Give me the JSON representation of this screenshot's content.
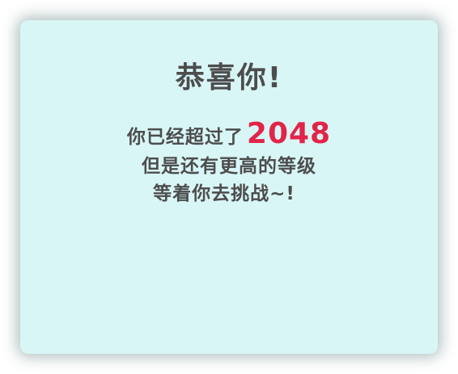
{
  "dialog": {
    "title": "恭喜你!",
    "line1_prefix": "你已经超过了",
    "score": "2048",
    "line2": "但是还有更高的等级",
    "line3": "等着你去挑战~!"
  },
  "colors": {
    "background": "#d9f6f6",
    "text": "#4d4d4d",
    "accent": "#e2244a"
  }
}
